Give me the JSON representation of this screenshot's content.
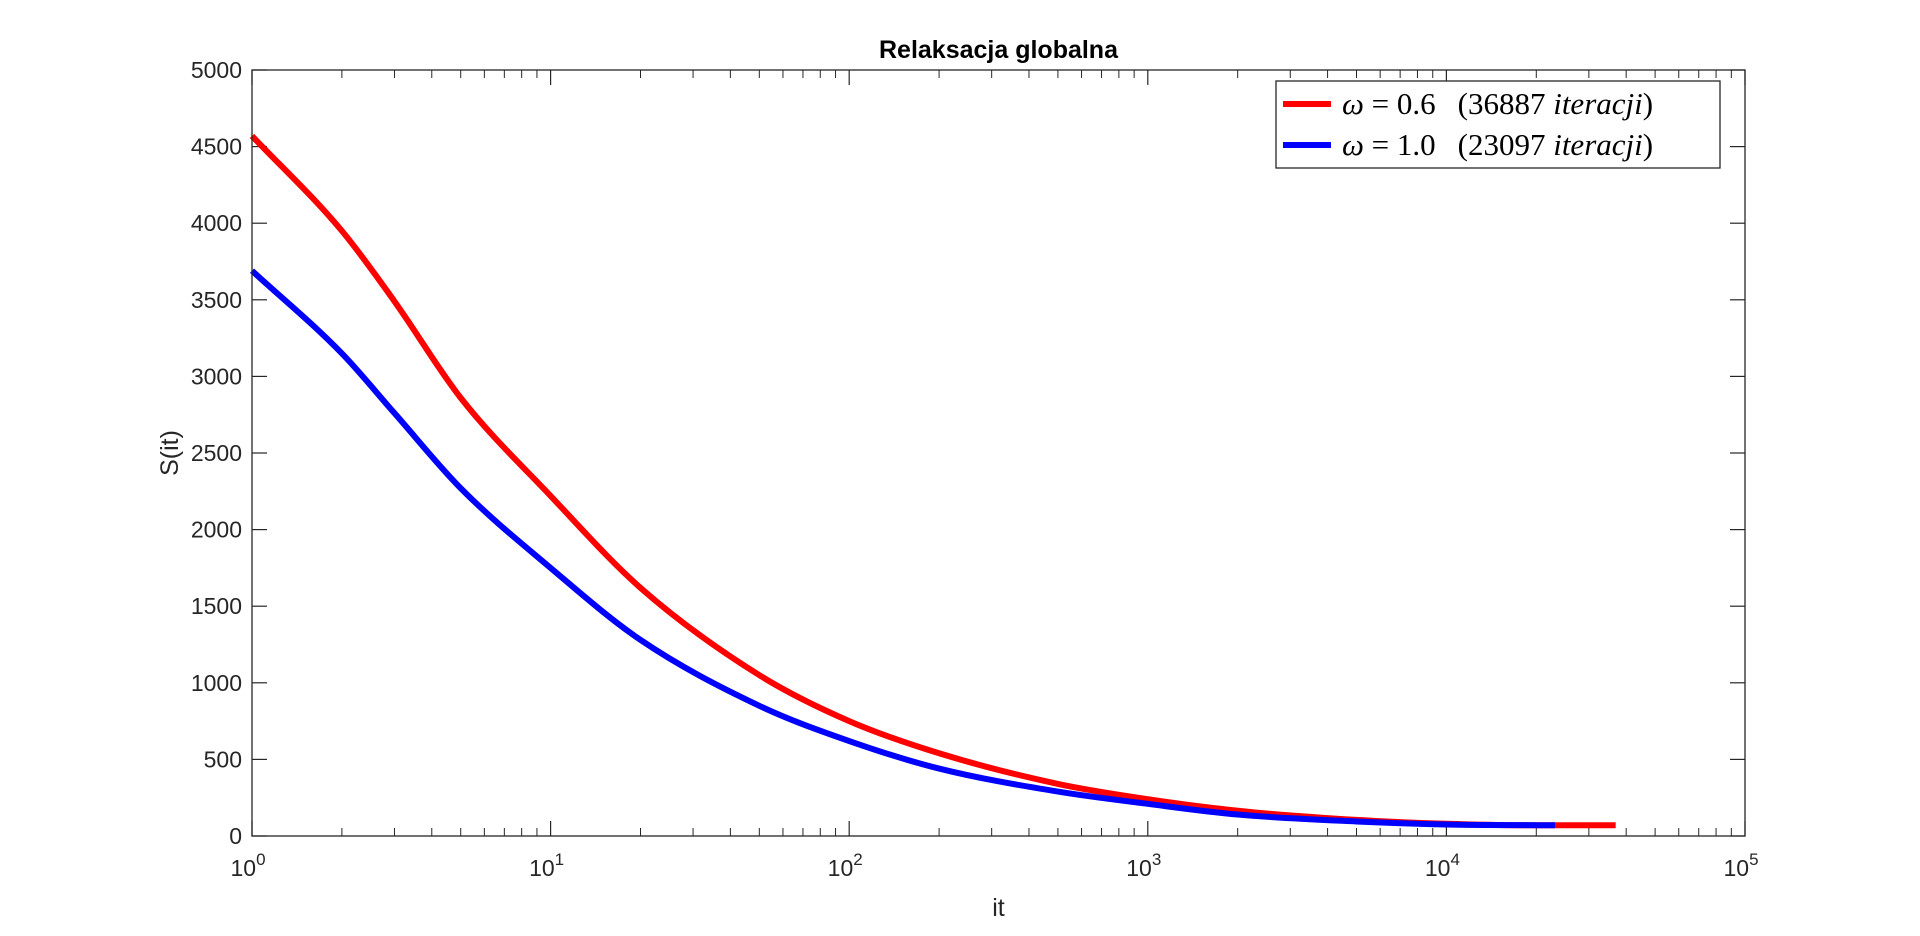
{
  "chart_data": {
    "type": "line",
    "title": "Relaksacja globalna",
    "xlabel": "it",
    "ylabel": "S(it)",
    "xscale": "log",
    "xlim": [
      1,
      100000
    ],
    "ylim": [
      0,
      5000
    ],
    "xtick_exponents": [
      "0",
      "1",
      "2",
      "3",
      "4",
      "5"
    ],
    "ytick_labels": [
      "0",
      "500",
      "1000",
      "1500",
      "2000",
      "2500",
      "3000",
      "3500",
      "4000",
      "4500",
      "5000"
    ],
    "grid": false,
    "legend_position": "top-right",
    "series": [
      {
        "name": "ω = 0.6  (36887 iteracji)",
        "legend": {
          "symbol": "ω",
          "eq": "=",
          "value": "0.6",
          "paren_open": "(",
          "count": "36887",
          "word": "iteracji",
          "paren_close": ")"
        },
        "color": "#ff0000",
        "x": [
          1,
          2,
          3,
          5,
          10,
          20,
          50,
          100,
          200,
          500,
          1000,
          2000,
          5000,
          10000,
          20000,
          36887
        ],
        "y": [
          4570,
          3950,
          3490,
          2860,
          2220,
          1620,
          1050,
          750,
          540,
          340,
          240,
          165,
          105,
          80,
          70,
          70
        ]
      },
      {
        "name": "ω = 1.0  (23097 iteracji)",
        "legend": {
          "symbol": "ω",
          "eq": "=",
          "value": "1.0",
          "paren_open": "(",
          "count": "23097",
          "word": "iteracji",
          "paren_close": ")"
        },
        "color": "#0000ff",
        "x": [
          1,
          2,
          3,
          5,
          10,
          20,
          50,
          100,
          200,
          500,
          1000,
          2000,
          5000,
          10000,
          23097
        ],
        "y": [
          3690,
          3150,
          2760,
          2270,
          1750,
          1280,
          850,
          620,
          440,
          290,
          210,
          140,
          95,
          75,
          70
        ]
      }
    ]
  }
}
